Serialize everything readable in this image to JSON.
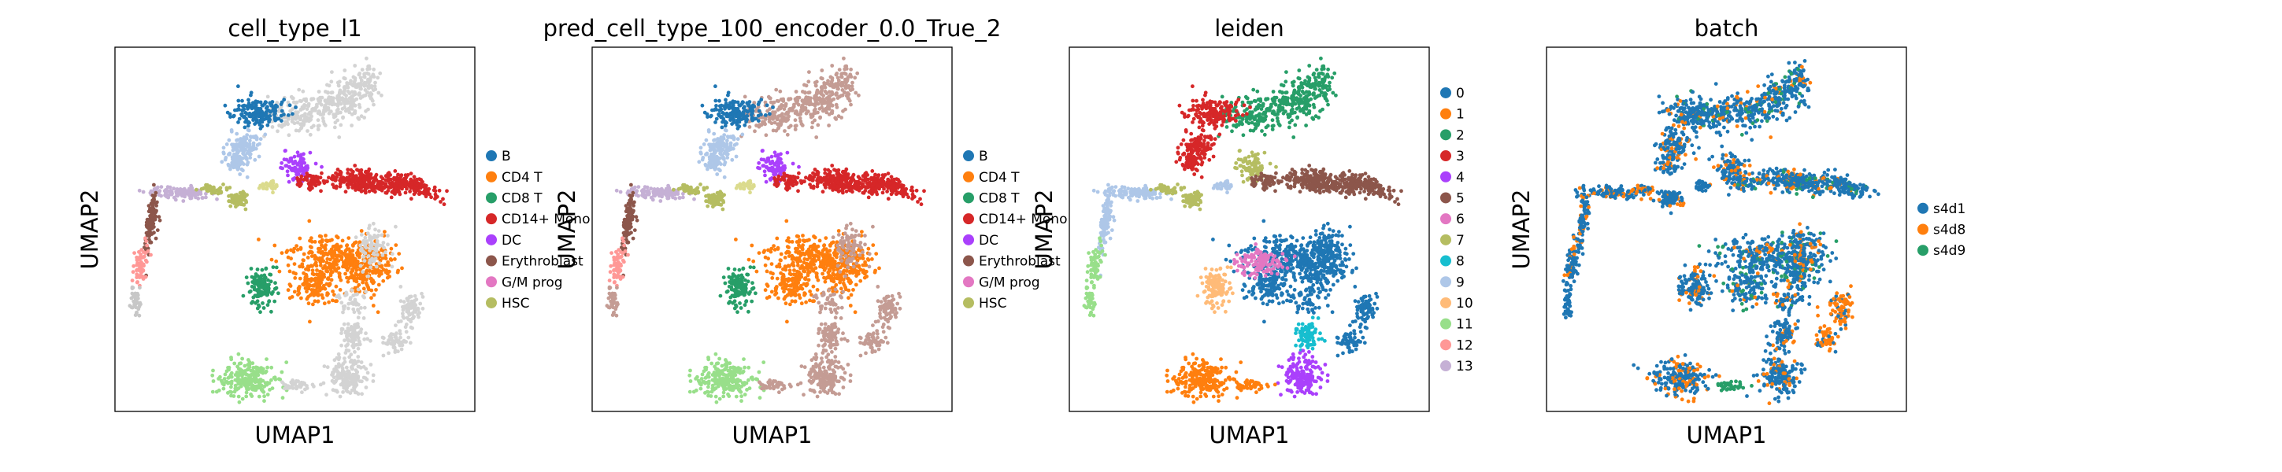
{
  "chart_data": [
    {
      "type": "scatter",
      "title": "cell_type_l1",
      "xlabel": "UMAP1",
      "ylabel": "UMAP2",
      "grid": false,
      "legend_placement": "right",
      "legend": [
        {
          "label": "B",
          "color": "#1f77b4"
        },
        {
          "label": "CD4 T",
          "color": "#ff7f0e"
        },
        {
          "label": "CD8 T",
          "color": "#279e68"
        },
        {
          "label": "CD14+ Mono",
          "color": "#d62728"
        },
        {
          "label": "DC",
          "color": "#aa40fc"
        },
        {
          "label": "Erythroblast",
          "color": "#8c564b"
        },
        {
          "label": "G/M prog",
          "color": "#e377c2"
        },
        {
          "label": "HSC",
          "color": "#b5bd61"
        }
      ],
      "clusters": [
        {
          "id": "tl",
          "color": "#d3d3d3"
        },
        {
          "id": "tl_b",
          "color": "#1f77b4"
        },
        {
          "id": "ml",
          "color": "#aec7e8"
        },
        {
          "id": "dc",
          "color": "#aa40fc"
        },
        {
          "id": "mono",
          "color": "#d62728"
        },
        {
          "id": "trail_s",
          "color": "#c5b0d5"
        },
        {
          "id": "trail_m",
          "color": "#b5bd61"
        },
        {
          "id": "trail_l",
          "color": "#dbdb8d"
        },
        {
          "id": "eryth",
          "color": "#8c564b"
        },
        {
          "id": "tail",
          "color": "#ff9896"
        },
        {
          "id": "tailend",
          "color": "#c7c7c7"
        },
        {
          "id": "small7",
          "color": "#b5bd61"
        },
        {
          "id": "t_big",
          "color": "#ff7f0e"
        },
        {
          "id": "cd8",
          "color": "#279e68"
        },
        {
          "id": "t_right",
          "color": "#d3d3d3"
        },
        {
          "id": "lower_mid",
          "color": "#d3d3d3"
        },
        {
          "id": "lower_r",
          "color": "#d3d3d3"
        },
        {
          "id": "bottom_l",
          "color": "#98df8a"
        },
        {
          "id": "bottom_r",
          "color": "#d3d3d3"
        },
        {
          "id": "bottom_bridge",
          "color": "#d3d3d3"
        }
      ]
    },
    {
      "type": "scatter",
      "title": "pred_cell_type_100_encoder_0.0_True_2",
      "xlabel": "UMAP1",
      "ylabel": "UMAP2",
      "grid": false,
      "legend_placement": "right",
      "legend": [
        {
          "label": "B",
          "color": "#1f77b4"
        },
        {
          "label": "CD4 T",
          "color": "#ff7f0e"
        },
        {
          "label": "CD8 T",
          "color": "#279e68"
        },
        {
          "label": "CD14+ Mono",
          "color": "#d62728"
        },
        {
          "label": "DC",
          "color": "#aa40fc"
        },
        {
          "label": "Erythroblast",
          "color": "#8c564b"
        },
        {
          "label": "G/M prog",
          "color": "#e377c2"
        },
        {
          "label": "HSC",
          "color": "#b5bd61"
        }
      ],
      "clusters": [
        {
          "id": "tl",
          "color": "#c49c94"
        },
        {
          "id": "tl_b",
          "color": "#1f77b4"
        },
        {
          "id": "ml",
          "color": "#aec7e8"
        },
        {
          "id": "dc",
          "color": "#aa40fc"
        },
        {
          "id": "mono",
          "color": "#d62728"
        },
        {
          "id": "trail_s",
          "color": "#c5b0d5"
        },
        {
          "id": "trail_m",
          "color": "#b5bd61"
        },
        {
          "id": "trail_l",
          "color": "#dbdb8d"
        },
        {
          "id": "eryth",
          "color": "#8c564b"
        },
        {
          "id": "tail",
          "color": "#ff9896"
        },
        {
          "id": "tailend",
          "color": "#c49c94"
        },
        {
          "id": "small7",
          "color": "#b5bd61"
        },
        {
          "id": "t_big",
          "color": "#ff7f0e"
        },
        {
          "id": "cd8",
          "color": "#279e68"
        },
        {
          "id": "t_right",
          "color": "#c49c94"
        },
        {
          "id": "lower_mid",
          "color": "#c49c94"
        },
        {
          "id": "lower_r",
          "color": "#c49c94"
        },
        {
          "id": "bottom_l",
          "color": "#98df8a"
        },
        {
          "id": "bottom_r",
          "color": "#c49c94"
        },
        {
          "id": "bottom_bridge",
          "color": "#c49c94"
        }
      ]
    },
    {
      "type": "scatter",
      "title": "leiden",
      "xlabel": "UMAP1",
      "ylabel": "UMAP2",
      "grid": false,
      "legend_placement": "right",
      "legend": [
        {
          "label": "0",
          "color": "#1f77b4"
        },
        {
          "label": "1",
          "color": "#ff7f0e"
        },
        {
          "label": "2",
          "color": "#279e68"
        },
        {
          "label": "3",
          "color": "#d62728"
        },
        {
          "label": "4",
          "color": "#aa40fc"
        },
        {
          "label": "5",
          "color": "#8c564b"
        },
        {
          "label": "6",
          "color": "#e377c2"
        },
        {
          "label": "7",
          "color": "#b5bd61"
        },
        {
          "label": "8",
          "color": "#17becf"
        },
        {
          "label": "9",
          "color": "#aec7e8"
        },
        {
          "label": "10",
          "color": "#ffbb78"
        },
        {
          "label": "11",
          "color": "#98df8a"
        },
        {
          "label": "12",
          "color": "#ff9896"
        },
        {
          "label": "13",
          "color": "#c5b0d5"
        }
      ],
      "clusters": [
        {
          "id": "tl",
          "color": "#279e68"
        },
        {
          "id": "tl_b",
          "color": "#d62728"
        },
        {
          "id": "ml",
          "color": "#d62728"
        },
        {
          "id": "dc",
          "color": "#b5bd61"
        },
        {
          "id": "mono",
          "color": "#8c564b"
        },
        {
          "id": "trail_s",
          "color": "#aec7e8"
        },
        {
          "id": "trail_m",
          "color": "#b5bd61"
        },
        {
          "id": "trail_l",
          "color": "#aec7e8"
        },
        {
          "id": "eryth",
          "color": "#aec7e8"
        },
        {
          "id": "tail",
          "color": "#98df8a"
        },
        {
          "id": "tailend",
          "color": "#98df8a"
        },
        {
          "id": "small7",
          "color": "#b5bd61"
        },
        {
          "id": "t_big",
          "color": "#1f77b4"
        },
        {
          "id": "cd8",
          "color": "#ffbb78"
        },
        {
          "id": "t_right",
          "color": "#1f77b4"
        },
        {
          "id": "lower_mid",
          "color": "#17becf"
        },
        {
          "id": "lower_r",
          "color": "#1f77b4"
        },
        {
          "id": "bottom_l",
          "color": "#ff7f0e"
        },
        {
          "id": "bottom_r",
          "color": "#aa40fc"
        },
        {
          "id": "bottom_bridge",
          "color": "#ff7f0e"
        },
        {
          "id": "t_left_pink",
          "color": "#e377c2"
        }
      ]
    },
    {
      "type": "scatter",
      "title": "batch",
      "xlabel": "UMAP1",
      "ylabel": "UMAP2",
      "grid": false,
      "legend_placement": "right",
      "legend": [
        {
          "label": "s4d1",
          "color": "#1f77b4"
        },
        {
          "label": "s4d8",
          "color": "#ff7f0e"
        },
        {
          "label": "s4d9",
          "color": "#279e68"
        }
      ],
      "clusters": [
        {
          "id": "tl",
          "color": "#1f77b4",
          "mix": [
            "#ff7f0e",
            "#279e68"
          ]
        },
        {
          "id": "tl_b",
          "color": "#1f77b4",
          "mix": [
            "#ff7f0e",
            "#279e68"
          ]
        },
        {
          "id": "ml",
          "color": "#1f77b4",
          "mix": [
            "#ff7f0e"
          ]
        },
        {
          "id": "dc",
          "color": "#1f77b4",
          "mix": [
            "#ff7f0e"
          ]
        },
        {
          "id": "mono",
          "color": "#1f77b4",
          "mix": [
            "#ff7f0e",
            "#279e68"
          ]
        },
        {
          "id": "trail_s",
          "color": "#1f77b4",
          "mix": [
            "#ff7f0e"
          ]
        },
        {
          "id": "trail_m",
          "color": "#1f77b4",
          "mix": [
            "#ff7f0e"
          ]
        },
        {
          "id": "trail_l",
          "color": "#1f77b4",
          "mix": [
            "#ff7f0e"
          ]
        },
        {
          "id": "eryth",
          "color": "#1f77b4",
          "mix": [
            "#ff7f0e"
          ]
        },
        {
          "id": "tail",
          "color": "#1f77b4",
          "mix": [
            "#ff7f0e"
          ]
        },
        {
          "id": "tailend",
          "color": "#1f77b4",
          "mix": []
        },
        {
          "id": "small7",
          "color": "#1f77b4",
          "mix": []
        },
        {
          "id": "t_big",
          "color": "#1f77b4",
          "mix": [
            "#ff7f0e",
            "#279e68"
          ]
        },
        {
          "id": "cd8",
          "color": "#1f77b4",
          "mix": [
            "#ff7f0e"
          ]
        },
        {
          "id": "t_right",
          "color": "#1f77b4",
          "mix": [
            "#ff7f0e"
          ]
        },
        {
          "id": "lower_mid",
          "color": "#1f77b4",
          "mix": [
            "#ff7f0e"
          ]
        },
        {
          "id": "lower_r",
          "color": "#ff7f0e",
          "mix": [
            "#1f77b4"
          ]
        },
        {
          "id": "bottom_l",
          "color": "#1f77b4",
          "mix": [
            "#ff7f0e"
          ]
        },
        {
          "id": "bottom_r",
          "color": "#1f77b4",
          "mix": [
            "#ff7f0e"
          ]
        },
        {
          "id": "bottom_bridge",
          "color": "#279e68",
          "mix": []
        }
      ]
    }
  ]
}
